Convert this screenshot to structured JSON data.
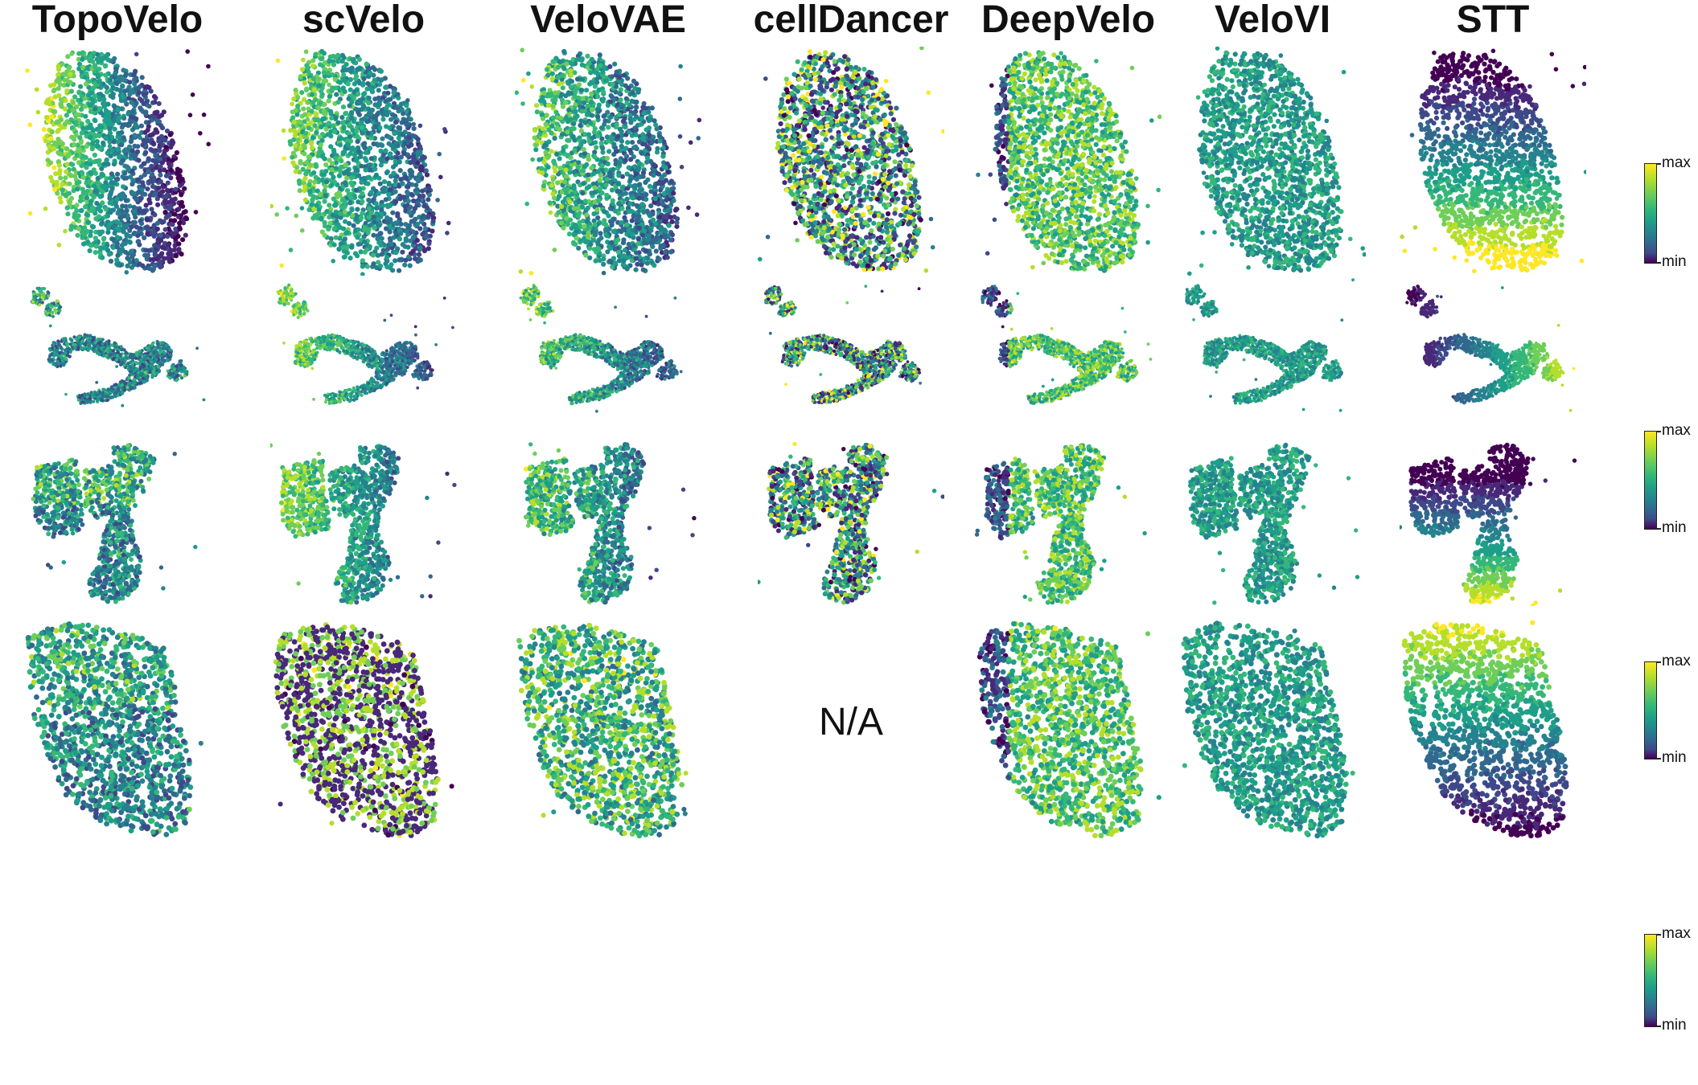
{
  "chart_data": {
    "type": "scatter",
    "methods": [
      "TopoVelo",
      "scVelo",
      "VeloVAE",
      "cellDancer",
      "DeepVelo",
      "VeloVI",
      "STT"
    ],
    "rows": [
      {
        "shape": "embryo",
        "colorbar": {
          "max_label": "max",
          "min_label": "min"
        }
      },
      {
        "shape": "branch",
        "colorbar": {
          "max_label": "max",
          "min_label": "min"
        }
      },
      {
        "shape": "tissue",
        "colorbar": {
          "max_label": "max",
          "min_label": "min"
        }
      },
      {
        "shape": "slice",
        "colorbar": {
          "max_label": "max",
          "min_label": "min"
        }
      }
    ],
    "colormap": "viridis",
    "missing_panels": [
      {
        "row": 3,
        "method": "cellDancer",
        "label": "N/A"
      }
    ],
    "pattern_per_method": {
      "TopoVelo": "gradient-left-high",
      "scVelo": "mixed",
      "VeloVAE": "mixed-mid",
      "cellDancer": "noisy",
      "DeepVelo": "mostly-high",
      "VeloVI": "uniform-mid",
      "STT": "smooth-gradient"
    },
    "colors": {
      "min": "#440154",
      "mid": "#21918c",
      "max": "#fde725"
    }
  }
}
